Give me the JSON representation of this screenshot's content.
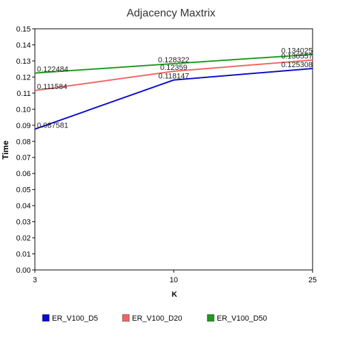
{
  "chart_data": {
    "type": "line",
    "title": "Adjacency Maxtrix",
    "xlabel": "K",
    "ylabel": "Time",
    "categories": [
      "3",
      "10",
      "25"
    ],
    "ylim": [
      0,
      0.15
    ],
    "yticks": [
      "0.00",
      "0.01",
      "0.02",
      "0.03",
      "0.04",
      "0.05",
      "0.06",
      "0.07",
      "0.08",
      "0.09",
      "0.10",
      "0.11",
      "0.12",
      "0.13",
      "0.14",
      "0.15"
    ],
    "grid": false,
    "legend_position": "bottom",
    "series": [
      {
        "name": "ER_V100_D5",
        "color": "#0a0ad2",
        "values": [
          0.087581,
          0.118147,
          0.125308
        ],
        "labels": [
          "0.087581",
          "0.118147",
          "0.125308"
        ]
      },
      {
        "name": "ER_V100_D20",
        "color": "#f26464",
        "values": [
          0.111584,
          0.12359,
          0.130557
        ],
        "labels": [
          "0.111584",
          "0.12359",
          "0.130557"
        ]
      },
      {
        "name": "ER_V100_D50",
        "color": "#1e9a1e",
        "values": [
          0.122484,
          0.128322,
          0.134025
        ],
        "labels": [
          "0.122484",
          "0.128322",
          "0.134025"
        ]
      }
    ]
  }
}
